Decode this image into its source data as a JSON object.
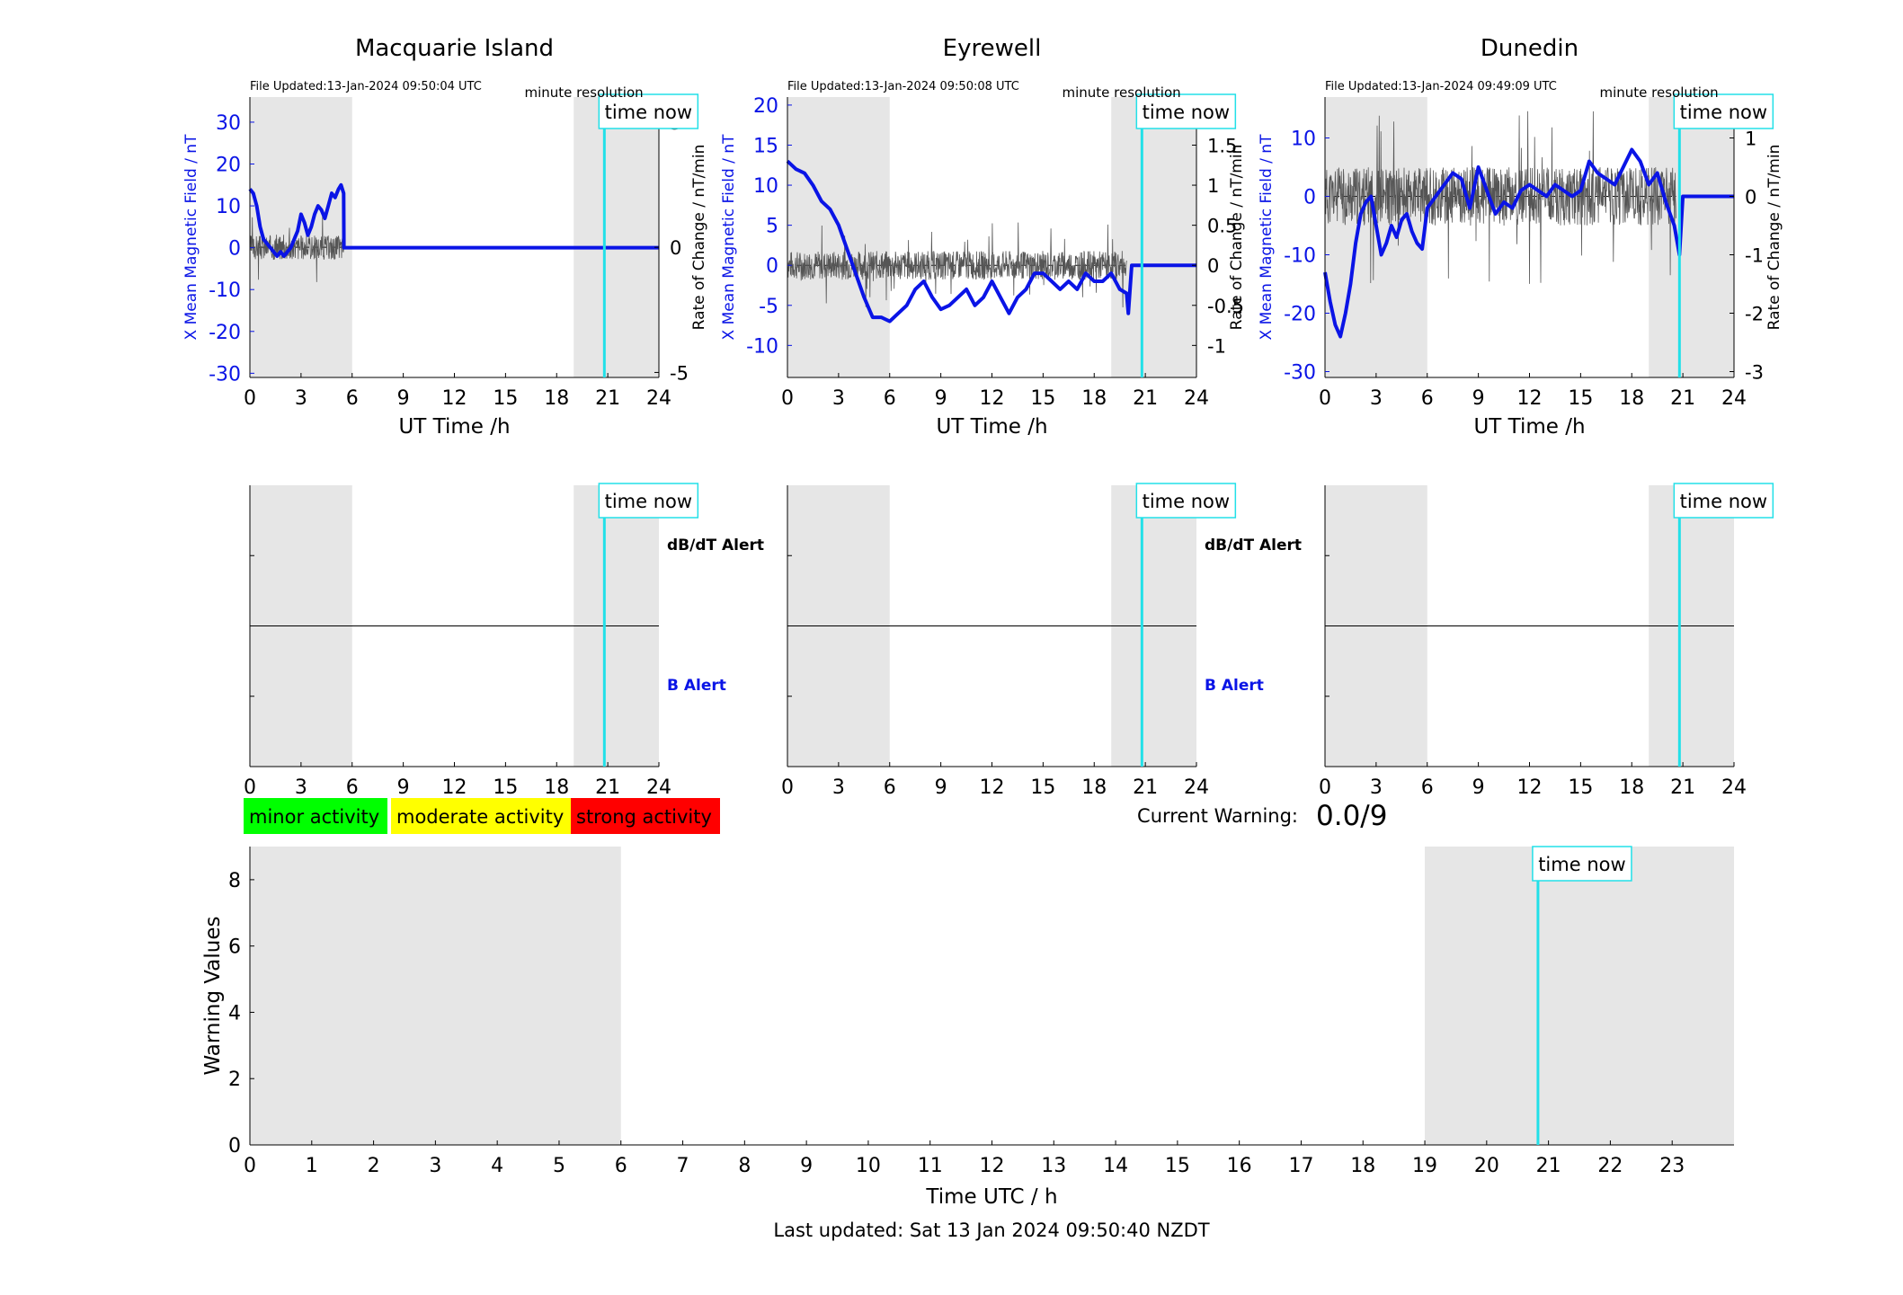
{
  "colors": {
    "field_line": "#0a14e6",
    "rate_line": "#555555",
    "now_line": "#22e0e8",
    "night_shade": "#e6e6e6",
    "minor": "#00ff00",
    "moderate": "#ffff00",
    "strong": "#ff0000"
  },
  "page": {
    "last_updated": "Last updated: Sat 13 Jan 2024 09:50:40 NZDT",
    "current_warning_label": "Current Warning:",
    "current_warning_value": "0.0/9"
  },
  "legend": {
    "minor": "minor activity",
    "moderate": "moderate activity",
    "strong": "strong activity"
  },
  "alerts": {
    "dbdt": "dB/dT Alert",
    "b": "B Alert"
  },
  "chart_data": [
    {
      "type": "line",
      "title": "Macquarie Island",
      "file_updated": "File Updated:13-Jan-2024 09:50:04 UTC",
      "resolution": "minute resolution",
      "now_label": "time now",
      "now_hour": 20.8,
      "night_ranges": [
        [
          0,
          6
        ],
        [
          19,
          24
        ]
      ],
      "xlabel": "UT Time /h",
      "ylabel_left": "X Mean Magnetic Field / nT",
      "ylabel_right": "Rate of Change / nT/min",
      "xlim": [
        0,
        24
      ],
      "xticks": [
        0,
        3,
        6,
        9,
        12,
        15,
        18,
        21,
        24
      ],
      "ylim_left": [
        -31,
        36
      ],
      "yticks_left": [
        -30,
        -20,
        -10,
        0,
        10,
        20,
        30
      ],
      "ylim_right": [
        -5.2,
        6
      ],
      "yticks_right": [
        -5,
        0,
        5
      ],
      "series": [
        {
          "axis": "left",
          "x": [
            0,
            0.2,
            0.4,
            0.6,
            0.8,
            1.0,
            1.2,
            1.4,
            1.6,
            1.8,
            2.0,
            2.2,
            2.4,
            2.6,
            2.8,
            3.0,
            3.2,
            3.4,
            3.6,
            3.8,
            4.0,
            4.2,
            4.4,
            4.6,
            4.8,
            5.0,
            5.2,
            5.35,
            5.5,
            5.52,
            6,
            24
          ],
          "y": [
            14,
            13,
            10,
            5,
            2,
            1,
            0,
            -1,
            -2,
            -1,
            -2,
            -1,
            0,
            2,
            4,
            8,
            6,
            3,
            5,
            8,
            10,
            9,
            7,
            10,
            13,
            12,
            14,
            15,
            13,
            0,
            0,
            0
          ]
        },
        {
          "axis": "right",
          "x": [
            0,
            5.52
          ],
          "y": [
            0,
            0
          ]
        }
      ],
      "rate_trace": {
        "x_start": 0,
        "x_end": 5.5,
        "noise_amplitude": 0.5,
        "seed": 3
      }
    },
    {
      "type": "line",
      "title": "Eyrewell",
      "file_updated": "File Updated:13-Jan-2024 09:50:08 UTC",
      "resolution": "minute resolution",
      "now_label": "time now",
      "now_hour": 20.8,
      "night_ranges": [
        [
          0,
          6
        ],
        [
          19,
          24
        ]
      ],
      "xlabel": "UT Time /h",
      "ylabel_left": "X Mean Magnetic Field / nT",
      "ylabel_right": "Rate of Change / nT/min",
      "xlim": [
        0,
        24
      ],
      "xticks": [
        0,
        3,
        6,
        9,
        12,
        15,
        18,
        21,
        24
      ],
      "ylim_left": [
        -14,
        21
      ],
      "yticks_left": [
        -10,
        -5,
        0,
        5,
        10,
        15,
        20
      ],
      "ylim_right": [
        -1.4,
        2.1
      ],
      "yticks_right": [
        -1,
        -0.5,
        0,
        0.5,
        1,
        1.5,
        2
      ],
      "series": [
        {
          "axis": "left",
          "x": [
            0,
            0.5,
            1.0,
            1.5,
            2.0,
            2.5,
            3.0,
            3.5,
            4.0,
            4.5,
            5.0,
            5.5,
            6.0,
            6.5,
            7.0,
            7.5,
            8.0,
            8.5,
            9.0,
            9.5,
            10.0,
            10.5,
            11.0,
            11.5,
            12.0,
            12.5,
            13.0,
            13.5,
            14.0,
            14.5,
            15.0,
            15.5,
            16.0,
            16.5,
            17.0,
            17.5,
            18.0,
            18.5,
            19.0,
            19.5,
            19.9,
            20.0,
            20.2,
            24
          ],
          "y": [
            13,
            12,
            11.5,
            10,
            8,
            7,
            5,
            2,
            -1,
            -4,
            -6.5,
            -6.5,
            -7,
            -6,
            -5,
            -3,
            -2,
            -4,
            -5.5,
            -5,
            -4,
            -3,
            -5,
            -4,
            -2,
            -4,
            -6,
            -4,
            -3,
            -1,
            -1,
            -2,
            -3,
            -2,
            -3,
            -1,
            -2,
            -2,
            -1,
            -3,
            -3.5,
            -6,
            0,
            0
          ]
        },
        {
          "axis": "right",
          "x": [
            0,
            19.9
          ],
          "y": [
            0,
            0
          ]
        }
      ],
      "rate_trace": {
        "x_start": 0,
        "x_end": 19.9,
        "noise_amplitude": 0.18,
        "seed": 7
      }
    },
    {
      "type": "line",
      "title": "Dunedin",
      "file_updated": "File Updated:13-Jan-2024 09:49:09 UTC",
      "resolution": "minute resolution",
      "now_label": "time now",
      "now_hour": 20.8,
      "night_ranges": [
        [
          0,
          6
        ],
        [
          19,
          24
        ]
      ],
      "xlabel": "UT Time /h",
      "ylabel_left": "X Mean Magnetic Field / nT",
      "ylabel_right": "Rate of Change / nT/min",
      "xlim": [
        0,
        24
      ],
      "xticks": [
        0,
        3,
        6,
        9,
        12,
        15,
        18,
        21,
        24
      ],
      "ylim_left": [
        -31,
        17
      ],
      "yticks_left": [
        -30,
        -20,
        -10,
        0,
        10
      ],
      "ylim_right": [
        -3.1,
        1.7
      ],
      "yticks_right": [
        -3,
        -2,
        -1,
        0,
        1
      ],
      "series": [
        {
          "axis": "left",
          "x": [
            0,
            0.3,
            0.6,
            0.9,
            1.2,
            1.5,
            1.8,
            2.1,
            2.4,
            2.7,
            3.0,
            3.3,
            3.6,
            3.9,
            4.2,
            4.5,
            4.8,
            5.1,
            5.4,
            5.7,
            6.0,
            6.5,
            7.0,
            7.5,
            8.0,
            8.5,
            9.0,
            9.5,
            10.0,
            10.5,
            11.0,
            11.5,
            12.0,
            12.5,
            13.0,
            13.5,
            14.0,
            14.5,
            15.0,
            15.5,
            16.0,
            16.5,
            17.0,
            17.5,
            18.0,
            18.5,
            19.0,
            19.5,
            20.0,
            20.5,
            20.8,
            21.0,
            24
          ],
          "y": [
            -13,
            -18,
            -22,
            -24,
            -20,
            -15,
            -8,
            -3,
            -1,
            0,
            -5,
            -10,
            -8,
            -5,
            -7,
            -4,
            -3,
            -6,
            -8,
            -9,
            -2,
            0,
            2,
            4,
            3,
            -2,
            5,
            1,
            -3,
            -1,
            -2,
            1,
            2,
            1,
            0,
            2,
            1,
            0,
            1,
            6,
            4,
            3,
            2,
            5,
            8,
            6,
            2,
            4,
            -1,
            -5,
            -10,
            0,
            0
          ]
        },
        {
          "axis": "right",
          "x": [
            0,
            20.6
          ],
          "y": [
            0,
            0
          ]
        }
      ],
      "rate_trace": {
        "x_start": 0,
        "x_end": 20.6,
        "noise_amplitude": 0.5,
        "seed": 11
      }
    },
    {
      "type": "alert_panel",
      "station": "Macquarie Island",
      "now_label": "time now",
      "now_hour": 20.8,
      "night_ranges": [
        [
          0,
          6
        ],
        [
          19,
          24
        ]
      ],
      "xlim": [
        0,
        24
      ],
      "xticks": [
        0,
        3,
        6,
        9,
        12,
        15,
        18,
        21,
        24
      ]
    },
    {
      "type": "alert_panel",
      "station": "Eyrewell",
      "now_label": "time now",
      "now_hour": 20.8,
      "night_ranges": [
        [
          0,
          6
        ],
        [
          19,
          24
        ]
      ],
      "xlim": [
        0,
        24
      ],
      "xticks": [
        0,
        3,
        6,
        9,
        12,
        15,
        18,
        21,
        24
      ]
    },
    {
      "type": "alert_panel",
      "station": "Dunedin",
      "now_label": "time now",
      "now_hour": 20.8,
      "night_ranges": [
        [
          0,
          6
        ],
        [
          19,
          24
        ]
      ],
      "xlim": [
        0,
        24
      ],
      "xticks": [
        0,
        3,
        6,
        9,
        12,
        15,
        18,
        21,
        24
      ]
    },
    {
      "type": "bar",
      "title": "",
      "xlabel": "Time UTC / h",
      "ylabel": "Warning Values",
      "xlim": [
        0,
        24
      ],
      "xticks": [
        0,
        1,
        2,
        3,
        4,
        5,
        6,
        7,
        8,
        9,
        10,
        11,
        12,
        13,
        14,
        15,
        16,
        17,
        18,
        19,
        20,
        21,
        22,
        23
      ],
      "ylim": [
        0,
        9
      ],
      "yticks": [
        0,
        2,
        4,
        6,
        8
      ],
      "night_ranges": [
        [
          0,
          6
        ],
        [
          19,
          24
        ]
      ],
      "now_label": "time now",
      "now_hour": 20.83,
      "values": []
    }
  ]
}
